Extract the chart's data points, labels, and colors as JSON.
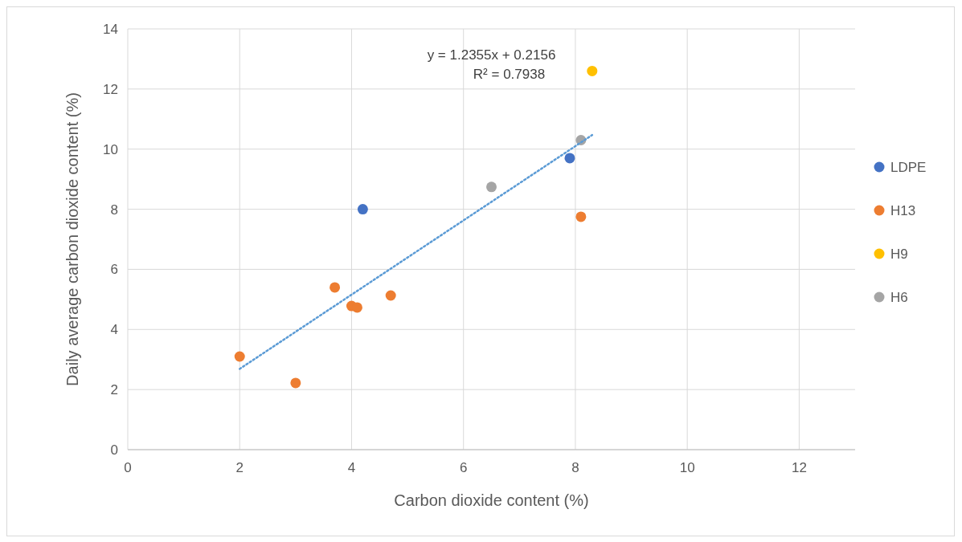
{
  "chart_data": {
    "type": "scatter",
    "xlabel": "Carbon dioxide content (%)",
    "ylabel": "Daily average carbon dioxide content (%)",
    "xlim": [
      0,
      13
    ],
    "ylim": [
      0,
      14
    ],
    "xticks": [
      0,
      2,
      4,
      6,
      8,
      10,
      12
    ],
    "yticks": [
      0,
      2,
      4,
      6,
      8,
      10,
      12,
      14
    ],
    "grid": true,
    "legend": "right",
    "marker": "circle",
    "annotations": [
      "y = 1.2355x + 0.2156",
      "R² = 0.7938"
    ],
    "series": [
      {
        "name": "LDPE",
        "color": "#4472c4",
        "x": [
          4.2,
          7.9
        ],
        "values": [
          8.0,
          9.7
        ]
      },
      {
        "name": "H13",
        "color": "#ed7d31",
        "x": [
          2.0,
          3.0,
          3.7,
          4.0,
          4.1,
          4.7,
          8.1
        ],
        "values": [
          3.1,
          2.22,
          5.4,
          4.78,
          4.73,
          5.13,
          7.75
        ]
      },
      {
        "name": "H9",
        "color": "#ffc000",
        "x": [
          8.3
        ],
        "values": [
          12.6
        ]
      },
      {
        "name": "H6",
        "color": "#a5a5a5",
        "x": [
          6.5,
          8.1
        ],
        "values": [
          8.74,
          10.3
        ]
      },
      {
        "type": "line",
        "color": "#5b9bd5",
        "line_style": "dotted",
        "marker": "none",
        "x": [
          2,
          8.3
        ],
        "values": [
          2.687,
          10.47
        ]
      }
    ]
  }
}
